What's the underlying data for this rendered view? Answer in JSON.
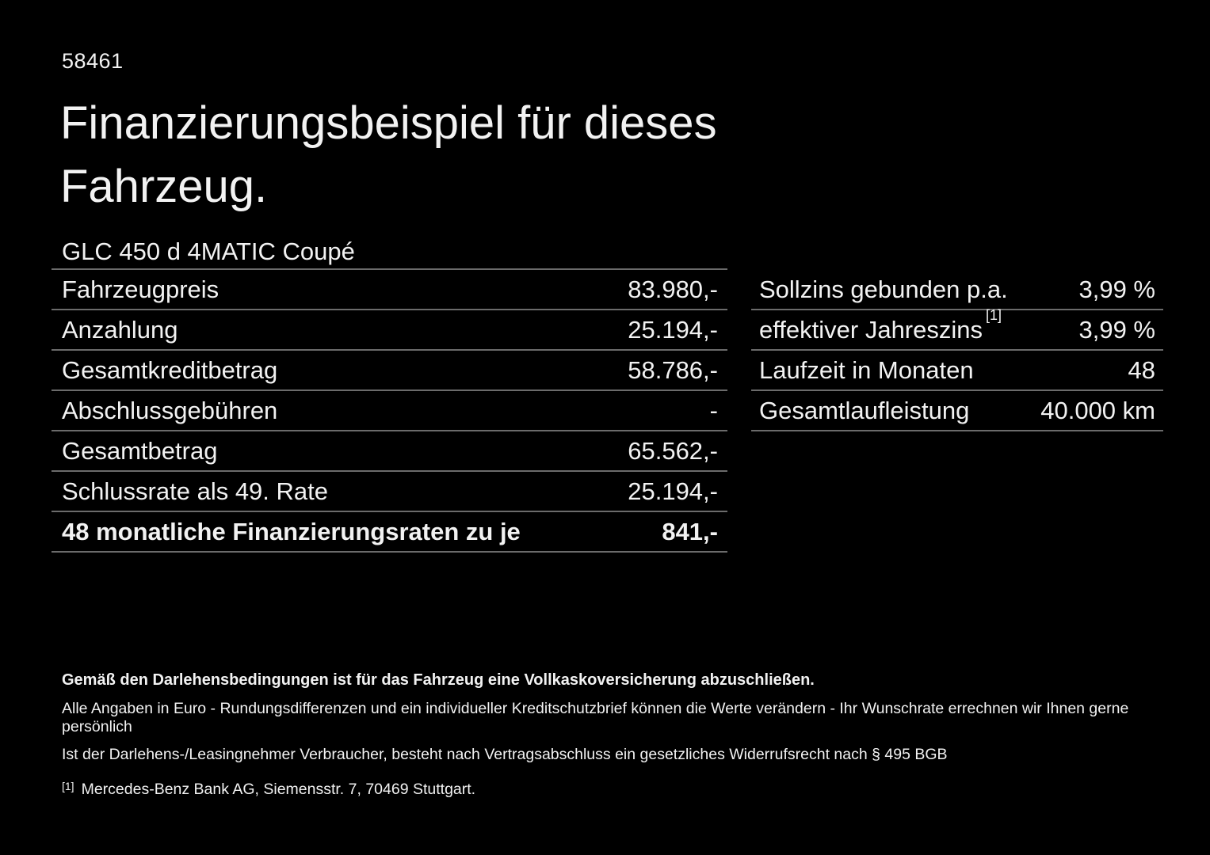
{
  "page": {
    "background": "#000000",
    "text_color": "#f2f2f2",
    "divider_color": "#6b6b6b"
  },
  "doc_number": "58461",
  "title": "Finanzierungsbeispiel für dieses Fahrzeug.",
  "vehicle": {
    "name": "GLC 450 d 4MATIC Coupé"
  },
  "finance_table": {
    "rows": [
      {
        "label": "Fahrzeugpreis",
        "value": "83.980,-"
      },
      {
        "label": "Anzahlung",
        "value": "25.194,-"
      },
      {
        "label": "Gesamtkreditbetrag",
        "value": "58.786,-"
      },
      {
        "label": "Abschlussgebühren",
        "value": "-"
      },
      {
        "label": "Gesamtbetrag",
        "value": "65.562,-"
      },
      {
        "label": "Schlussrate als 49. Rate",
        "value": "25.194,-"
      },
      {
        "label": "48 monatliche Finanzierungsraten zu je",
        "value": "841,-",
        "emphasis": true
      }
    ]
  },
  "conditions_table": {
    "rows": [
      {
        "label": "Sollzins gebunden p.a.",
        "value": "3,99 %"
      },
      {
        "label": "effektiver Jahreszins",
        "sup": "[1]",
        "value": "3,99 %"
      },
      {
        "label": "Laufzeit in Monaten",
        "value": "48"
      },
      {
        "label": "Gesamtlaufleistung",
        "value": "40.000 km"
      }
    ]
  },
  "footer": {
    "insurance_note": "Gemäß den Darlehensbedingungen ist für das Fahrzeug eine Vollkaskoversicherung abzuschließen.",
    "note_line1": "Alle Angaben in Euro - Rundungsdifferenzen und ein individueller Kreditschutzbrief können die Werte verändern - Ihr Wunschrate errechnen wir Ihnen gerne persönlich",
    "note_line2": "Ist der Darlehens-/Leasingnehmer Verbraucher, besteht nach Vertragsabschluss ein gesetzliches Widerrufsrecht nach § 495 BGB",
    "footnote_marker": "[1]",
    "footnote_text": "Mercedes-Benz Bank AG, Siemensstr. 7, 70469 Stuttgart."
  }
}
